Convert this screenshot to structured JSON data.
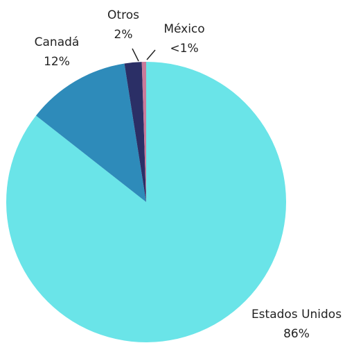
{
  "chart_data": {
    "type": "pie",
    "categories": [
      "Estados Unidos",
      "Canadá",
      "Otros",
      "México"
    ],
    "values": [
      86,
      12,
      2,
      0.5
    ],
    "value_labels": [
      "86%",
      "12%",
      "2%",
      "<1%"
    ],
    "colors": [
      "#6ae4e8",
      "#2e8bba",
      "#2b2f66",
      "#c97a9a"
    ]
  }
}
